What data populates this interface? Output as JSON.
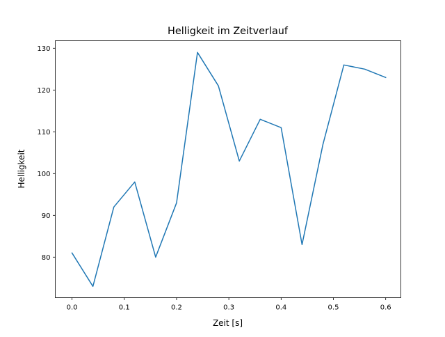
{
  "chart_data": {
    "type": "line",
    "title": "Helligkeit im Zeitverlauf",
    "xlabel": "Zeit [s]",
    "ylabel": "Helligkeit",
    "xlim": [
      -0.032,
      0.629
    ],
    "ylim": [
      70.3,
      131.8
    ],
    "xticks": [
      0.0,
      0.1,
      0.2,
      0.3,
      0.4,
      0.5,
      0.6
    ],
    "xtick_labels": [
      "0.0",
      "0.1",
      "0.2",
      "0.3",
      "0.4",
      "0.5",
      "0.6"
    ],
    "yticks": [
      80,
      90,
      100,
      110,
      120,
      130
    ],
    "ytick_labels": [
      "80",
      "90",
      "100",
      "110",
      "120",
      "130"
    ],
    "grid": false,
    "series": [
      {
        "name": "Helligkeit",
        "color": "#1f77b4",
        "x": [
          0.0,
          0.04,
          0.08,
          0.12,
          0.16,
          0.2,
          0.24,
          0.28,
          0.32,
          0.36,
          0.4,
          0.44,
          0.48,
          0.52,
          0.56,
          0.6
        ],
        "y": [
          81,
          73,
          92,
          98,
          80,
          93,
          129,
          121,
          103,
          113,
          111,
          83,
          107,
          126,
          125,
          123
        ]
      }
    ]
  }
}
